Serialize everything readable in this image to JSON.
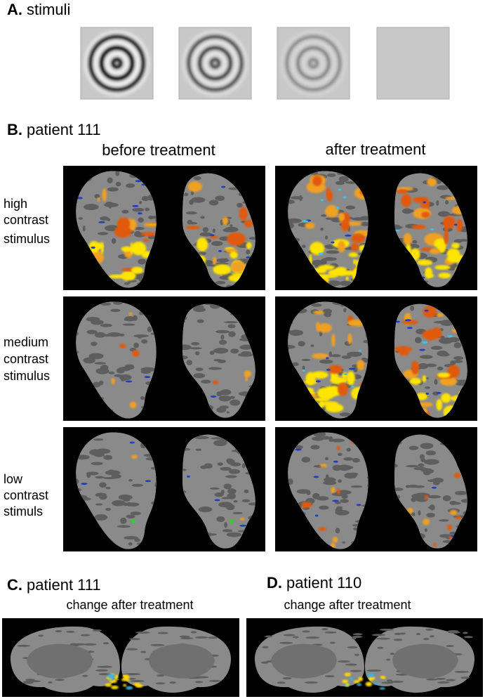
{
  "panel_a": {
    "letter": "A.",
    "title": "stimuli"
  },
  "panel_b": {
    "letter": "B.",
    "title": "patient 111",
    "columns": [
      "before treatment",
      "after treatment"
    ],
    "rows": [
      [
        "high",
        "contrast",
        "stimulus"
      ],
      [
        "medium",
        "contrast",
        "stimulus"
      ],
      [
        "low",
        "contrast",
        "stimuls"
      ]
    ]
  },
  "panel_c": {
    "letter": "C.",
    "title": "patient 111",
    "subtitle": "change after treatment"
  },
  "panel_d": {
    "letter": "D.",
    "title": "patient 110",
    "subtitle": "change after treatment"
  }
}
